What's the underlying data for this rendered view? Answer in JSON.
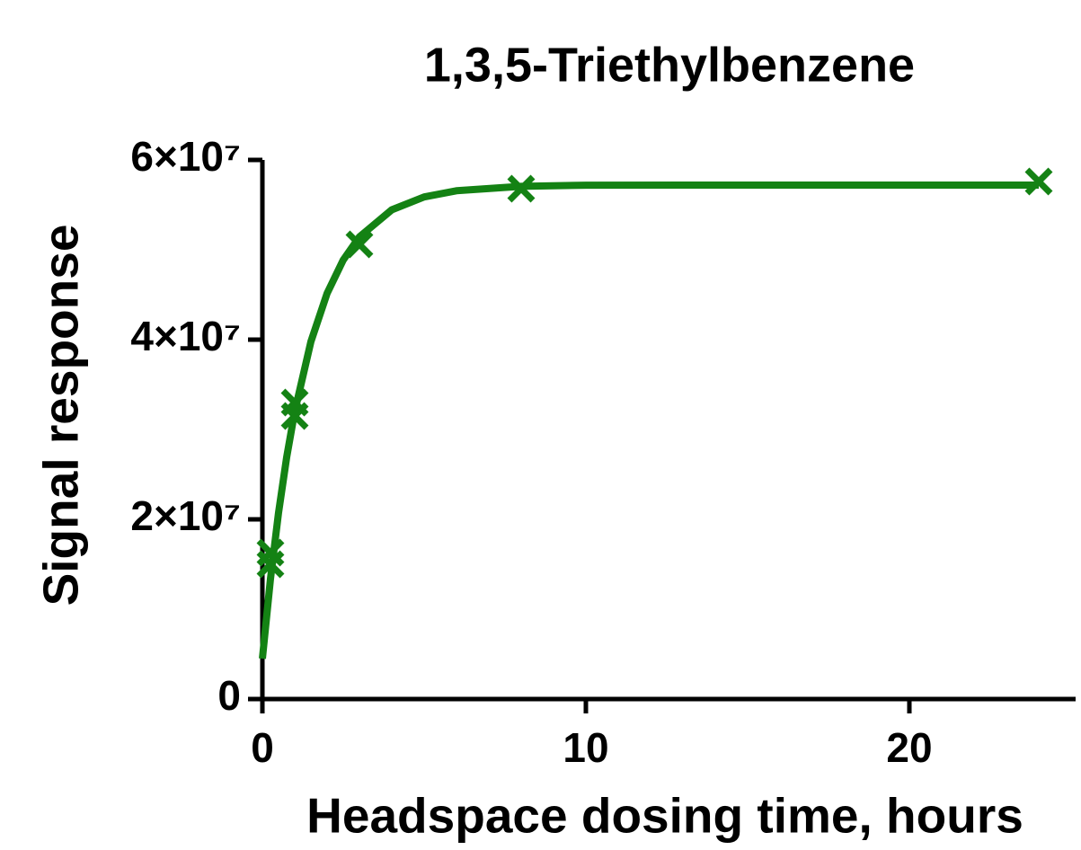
{
  "chart_data": {
    "type": "scatter",
    "title": "1,3,5-Triethylbenzene",
    "x_label": "Headspace dosing time, hours",
    "y_label": "Signal response",
    "xlim": [
      0,
      25
    ],
    "ylim": [
      0,
      60000000
    ],
    "xticks": [
      0,
      10,
      20
    ],
    "yticks": [
      {
        "value": 0,
        "label": "0"
      },
      {
        "value": 20000000,
        "label": "2×10⁷"
      },
      {
        "value": 40000000,
        "label": "4×10⁷"
      },
      {
        "value": 60000000,
        "label": "6×10⁷"
      }
    ],
    "series": [
      {
        "mode": "markers",
        "marker": "x",
        "color": "#148214",
        "x": [
          0.25,
          0.25,
          1,
          1,
          3,
          8,
          24
        ],
        "values": [
          16300000,
          15000000,
          33000000,
          31500000,
          50600000,
          56800000,
          57600000
        ]
      },
      {
        "mode": "line",
        "color": "#148214",
        "x": [
          0,
          0.25,
          0.5,
          0.75,
          1,
          1.5,
          2,
          2.5,
          3,
          4,
          5,
          6,
          8,
          10,
          15,
          20,
          24
        ],
        "values": [
          4500000,
          13380000,
          20760000,
          26900000,
          32000000,
          39780000,
          45150000,
          48870000,
          51440000,
          54450000,
          55880000,
          56570000,
          57060000,
          57190000,
          57200000,
          57200000,
          57200000
        ]
      }
    ]
  }
}
